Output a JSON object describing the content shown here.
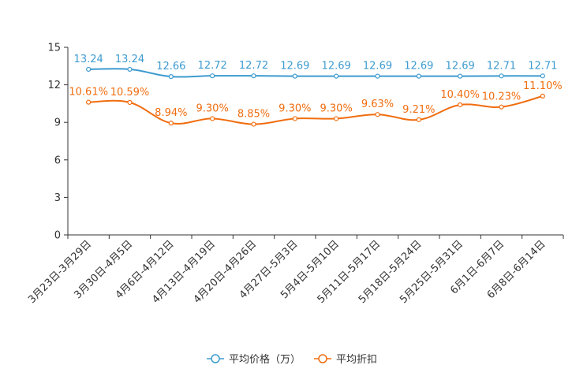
{
  "chart_data": {
    "type": "line",
    "title": "",
    "xlabel": "",
    "ylabel": "",
    "ylim": [
      0,
      15
    ],
    "yticks": [
      0,
      3,
      6,
      9,
      12,
      15
    ],
    "grid": false,
    "legend_position": "bottom-center",
    "categories": [
      "3月23日-3月29日",
      "3月30日-4月5日",
      "4月6日-4月12日",
      "4月13日-4月19日",
      "4月20日-4月26日",
      "4月27日-5月3日",
      "5月4日-5月10日",
      "5月11日-5月17日",
      "5月18日-5月24日",
      "5月25日-5月31日",
      "6月1日-6月7日",
      "6月8日-6月14日"
    ],
    "series": [
      {
        "name": "平均价格（万）",
        "color": "#3d9bd0",
        "values": [
          13.24,
          13.24,
          12.66,
          12.72,
          12.72,
          12.69,
          12.69,
          12.69,
          12.69,
          12.69,
          12.71,
          12.71
        ],
        "labels": [
          "13.24",
          "13.24",
          "12.66",
          "12.72",
          "12.72",
          "12.69",
          "12.69",
          "12.69",
          "12.69",
          "12.69",
          "12.71",
          "12.71"
        ]
      },
      {
        "name": "平均折扣",
        "color": "#f06d0f",
        "values": [
          10.61,
          10.59,
          8.94,
          9.3,
          8.85,
          9.3,
          9.3,
          9.63,
          9.21,
          10.4,
          10.23,
          11.1
        ],
        "labels": [
          "10.61%",
          "10.59%",
          "8.94%",
          "9.30%",
          "8.85%",
          "9.30%",
          "9.30%",
          "9.63%",
          "9.21%",
          "10.40%",
          "10.23%",
          "11.10%"
        ]
      }
    ]
  }
}
